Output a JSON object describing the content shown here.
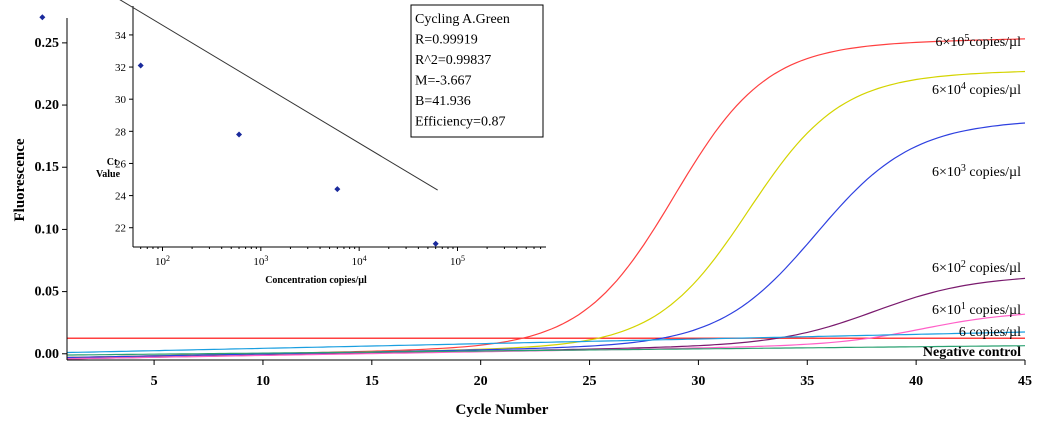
{
  "chart_data": [
    {
      "type": "line",
      "xlabel": "Cycle Number",
      "ylabel": "Fluorescence",
      "xlim": [
        1,
        45
      ],
      "ylim": [
        -0.005,
        0.27
      ],
      "xticks": [
        5,
        10,
        15,
        20,
        25,
        30,
        35,
        40,
        45
      ],
      "xtick_labels": [
        "5",
        "10",
        "15",
        "20",
        "25",
        "30",
        "35",
        "40",
        "45"
      ],
      "yticks": [
        0.0,
        0.05,
        0.1,
        0.15,
        0.2,
        0.25
      ],
      "ytick_labels": [
        "0.00",
        "0.05",
        "0.10",
        "0.15",
        "0.20",
        "0.25"
      ],
      "threshold": {
        "y": 0.0125,
        "color": "#ff0000"
      },
      "series": [
        {
          "name": "6×10⁵ copies/µl",
          "label_parts": [
            "6×10",
            "5",
            "copies/µl"
          ],
          "color": "#ff4040",
          "plateau": 0.2413,
          "mid": 28.9,
          "slope": 2.1,
          "base_start": -0.003,
          "base_end": 0.012
        },
        {
          "name": "6×10⁴ copies/µl",
          "label_parts": [
            "6×10",
            "4",
            " copies/µl"
          ],
          "color": "#d4d400",
          "plateau": 0.2165,
          "mid": 32.3,
          "slope": 2.1,
          "base_start": -0.003,
          "base_end": 0.011
        },
        {
          "name": "6×10³ copies/µl",
          "label_parts": [
            "6×10",
            "3",
            " copies/µl"
          ],
          "color": "#2e40e0",
          "plateau": 0.1768,
          "mid": 35.4,
          "slope": 2.2,
          "base_start": -0.003,
          "base_end": 0.011
        },
        {
          "name": "6×10² copies/µl",
          "label_parts": [
            "6×10",
            "2",
            " copies/µl"
          ],
          "color": "#7a1a6e",
          "plateau": 0.0528,
          "mid": 38.1,
          "slope": 2.2,
          "base_start": -0.004,
          "base_end": 0.01
        },
        {
          "name": "6×10¹ copies/µl",
          "label_parts": [
            "6×10",
            "1",
            " copies/µl"
          ],
          "color": "#ff60c8",
          "plateau": 0.025,
          "mid": 40.3,
          "slope": 2.0,
          "base_start": -0.004,
          "base_end": 0.009
        },
        {
          "name": "6 copies/µl",
          "label_parts": [
            "6 copies/µl",
            "",
            ""
          ],
          "color": "#1a9fe0",
          "plateau": 0.0,
          "mid": 50,
          "slope": 2.0,
          "base_start": 0.001,
          "base_end": 0.0175
        },
        {
          "name": "Negative control",
          "label_parts": [
            "Negative control",
            "",
            ""
          ],
          "color": "#2aa070",
          "plateau": 0.0,
          "mid": 50,
          "slope": 2.0,
          "base_start": -0.001,
          "base_end": 0.0065
        }
      ]
    },
    {
      "type": "scatter",
      "title": "",
      "xlabel": "Concentration copies/µl",
      "ylabel_lines": [
        "Ct",
        "Value"
      ],
      "xscale": "log",
      "xlim_log10": [
        1.7,
        5.9
      ],
      "ylim": [
        20.8,
        35.8
      ],
      "yticks": [
        22,
        24,
        26,
        28,
        30,
        32,
        34
      ],
      "xticks": [
        {
          "base": "10",
          "exp": "2",
          "log": 2
        },
        {
          "base": "10",
          "exp": "3",
          "log": 3
        },
        {
          "base": "10",
          "exp": "4",
          "log": 4
        },
        {
          "base": "10",
          "exp": "5",
          "log": 5
        }
      ],
      "points": [
        {
          "x": 6,
          "y": 35.1
        },
        {
          "x": 60,
          "y": 32.1
        },
        {
          "x": 600,
          "y": 27.8
        },
        {
          "x": 6000,
          "y": 24.4
        },
        {
          "x": 60000,
          "y": 21.0
        }
      ],
      "fit": {
        "m": -3.667,
        "b": 41.936
      }
    }
  ],
  "stats_box": {
    "lines": [
      "Cycling A.Green",
      "R=0.99919",
      "R^2=0.99837",
      "M=-3.667",
      "B=41.936",
      "Efficiency=0.87"
    ]
  }
}
